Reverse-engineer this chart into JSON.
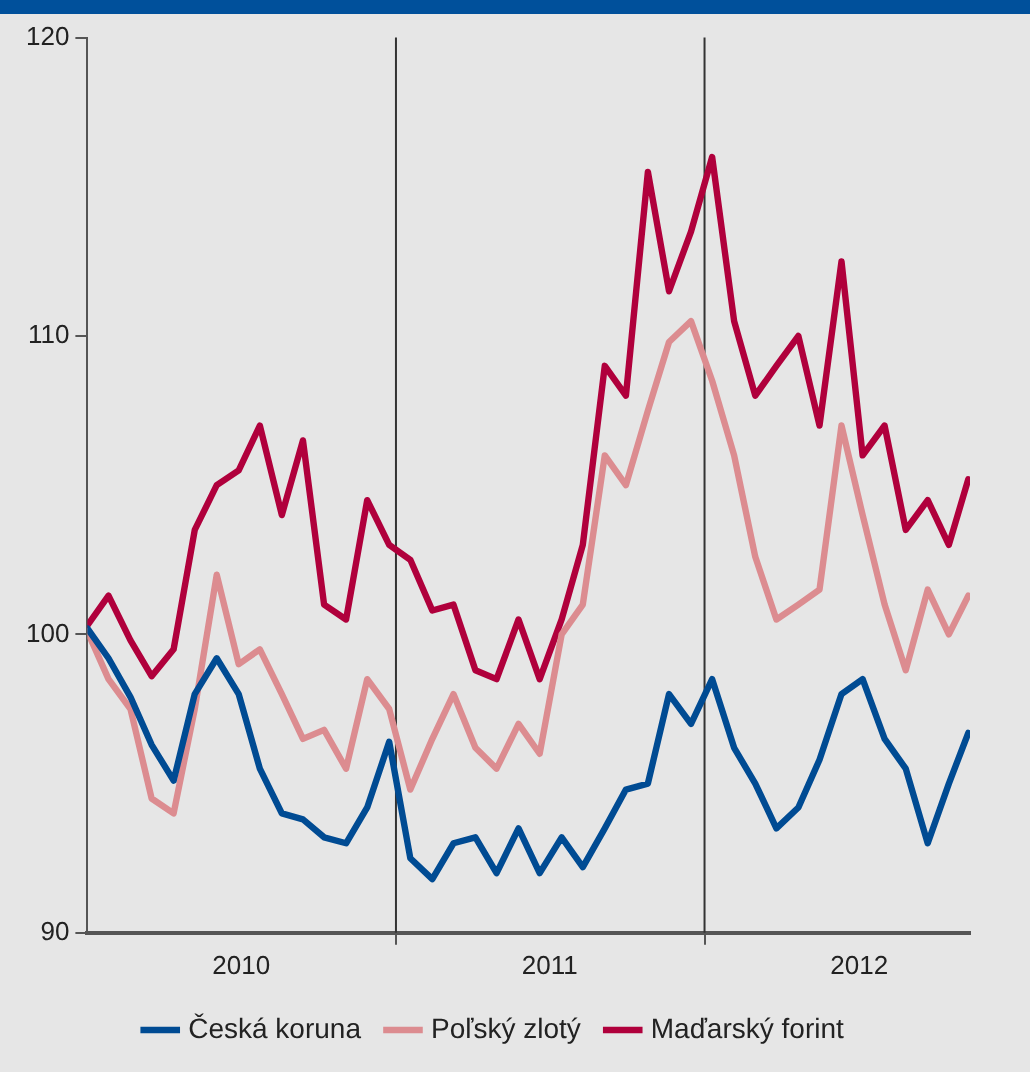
{
  "chart_data": {
    "type": "line",
    "x": [
      "2010-01-01",
      "2010-01-26",
      "2010-02-21",
      "2010-03-18",
      "2010-04-13",
      "2010-05-08",
      "2010-06-03",
      "2010-06-29",
      "2010-07-24",
      "2010-08-19",
      "2010-09-13",
      "2010-10-08",
      "2010-11-03",
      "2010-11-28",
      "2010-12-24",
      "2011-01-18",
      "2011-02-13",
      "2011-03-10",
      "2011-04-05",
      "2011-04-30",
      "2011-05-26",
      "2011-06-20",
      "2011-07-16",
      "2011-08-10",
      "2011-09-05",
      "2011-09-30",
      "2011-10-26",
      "2011-11-20",
      "2011-12-16",
      "2012-01-10",
      "2012-02-05",
      "2012-03-01",
      "2012-03-26",
      "2012-04-21",
      "2012-05-16",
      "2012-06-11",
      "2012-07-06",
      "2012-08-01",
      "2012-08-26",
      "2012-09-21",
      "2012-10-16",
      "2012-11-08"
    ],
    "series": [
      {
        "name": "Česká koruna",
        "color": "#004b93",
        "values": [
          100.2,
          99.2,
          97.9,
          96.3,
          95.1,
          98.0,
          99.2,
          98.0,
          95.5,
          94.0,
          93.8,
          93.2,
          93.0,
          94.2,
          96.4,
          92.5,
          91.8,
          93.0,
          93.2,
          92.0,
          93.5,
          92.0,
          93.2,
          92.2,
          93.5,
          94.8,
          95.0,
          98.0,
          97.0,
          98.5,
          96.2,
          95.0,
          93.5,
          94.2,
          95.8,
          98.0,
          98.5,
          96.5,
          95.5,
          93.0,
          95.0,
          96.7
        ]
      },
      {
        "name": "Maďarský forint",
        "color": "#b0003c",
        "values": [
          100.3,
          101.3,
          99.8,
          98.6,
          99.5,
          103.5,
          105.0,
          105.5,
          107.0,
          104.0,
          106.5,
          101.0,
          100.5,
          104.5,
          103.0,
          102.5,
          100.8,
          101.0,
          98.8,
          98.5,
          100.5,
          98.5,
          100.5,
          103.0,
          109.0,
          108.0,
          115.5,
          111.5,
          113.5,
          116.0,
          110.5,
          108.0,
          109.0,
          110.0,
          107.0,
          112.5,
          106.0,
          107.0,
          103.5,
          104.5,
          103.0,
          105.2
        ]
      },
      {
        "name": "Poľský zlotý",
        "color": "#dc8c90",
        "values": [
          100.1,
          98.5,
          97.5,
          94.5,
          94.0,
          97.5,
          102.0,
          99.0,
          99.5,
          98.0,
          96.5,
          96.8,
          95.5,
          98.5,
          97.5,
          94.8,
          96.5,
          98.0,
          96.2,
          95.5,
          97.0,
          96.0,
          100.0,
          101.0,
          106.0,
          105.0,
          107.5,
          109.8,
          110.5,
          108.5,
          106.0,
          102.6,
          100.5,
          101.0,
          101.5,
          107.0,
          104.0,
          101.0,
          98.8,
          101.5,
          100.0,
          101.3
        ]
      }
    ],
    "xlim": [
      "2010-01-01",
      "2012-11-10"
    ],
    "xticks": [
      {
        "value": "2010-07-02",
        "label": "2010"
      },
      {
        "value": "2011-01-01",
        "label": null
      },
      {
        "value": "2011-07-02",
        "label": "2011"
      },
      {
        "value": "2012-01-01",
        "label": null
      },
      {
        "value": "2012-07-02",
        "label": "2012"
      }
    ],
    "ylim": [
      90,
      120
    ],
    "yticks": [
      90,
      100,
      110,
      120
    ],
    "ref_lines": [
      {
        "axis": "x",
        "value": "2011-01-01",
        "color": "#333333"
      },
      {
        "axis": "x",
        "value": "2012-01-01",
        "color": "#333333"
      }
    ],
    "grid": false,
    "legend": "bottom",
    "marker": "none",
    "line_style": "solid"
  }
}
